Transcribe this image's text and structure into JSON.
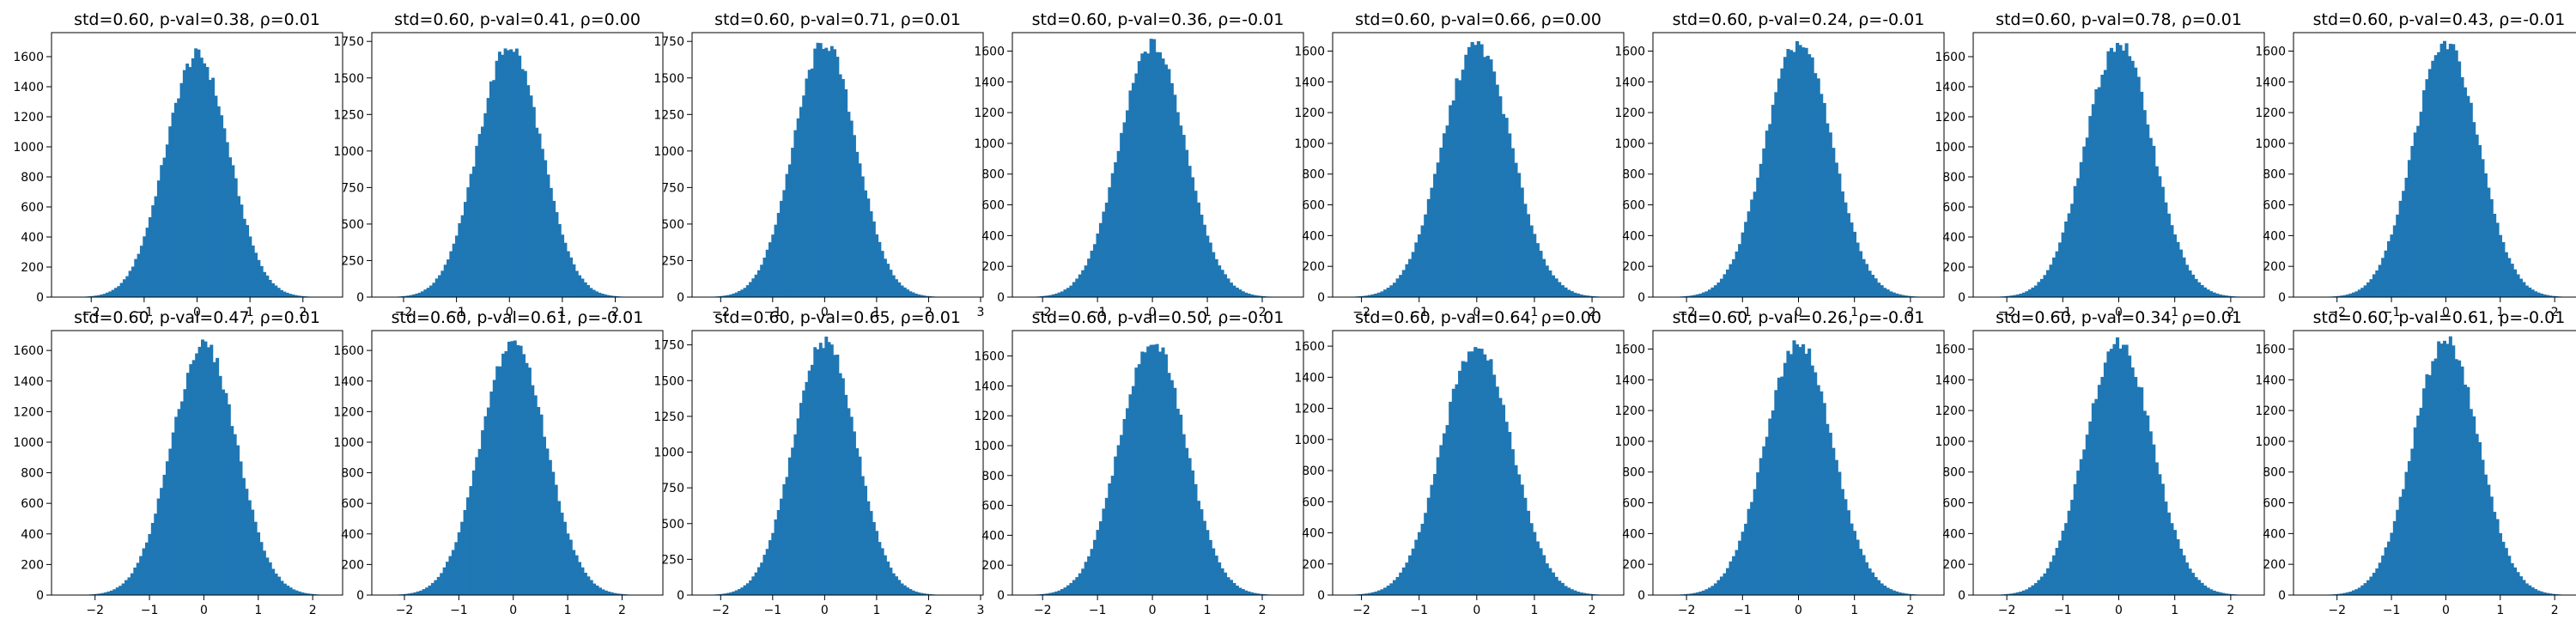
{
  "chart_data": [
    {
      "type": "bar",
      "title": "std=0.60, p-val=0.38, ρ=0.01",
      "xticks": [
        -2,
        -1,
        0,
        1,
        2
      ],
      "xlim": [
        -2.75,
        2.75
      ],
      "yticks": [
        0,
        200,
        400,
        600,
        800,
        1000,
        1200,
        1400,
        1600
      ],
      "ylim": [
        0,
        1760
      ],
      "std": 0.6,
      "peak": 1610,
      "color": "#1f77b4",
      "bins": 100,
      "grid": false
    },
    {
      "type": "bar",
      "title": "std=0.60, p-val=0.41, ρ=0.00",
      "xticks": [
        -2,
        -1,
        0,
        1,
        2
      ],
      "xlim": [
        -2.6,
        2.9
      ],
      "yticks": [
        0,
        250,
        500,
        750,
        1000,
        1250,
        1500,
        1750
      ],
      "ylim": [
        0,
        1810
      ],
      "std": 0.6,
      "peak": 1720,
      "color": "#1f77b4",
      "bins": 100,
      "grid": false
    },
    {
      "type": "bar",
      "title": "std=0.60, p-val=0.71, ρ=0.01",
      "xticks": [
        -2,
        -1,
        0,
        1,
        2,
        3
      ],
      "xlim": [
        -2.55,
        3.05
      ],
      "yticks": [
        0,
        250,
        500,
        750,
        1000,
        1250,
        1500,
        1750
      ],
      "ylim": [
        0,
        1810
      ],
      "std": 0.6,
      "peak": 1740,
      "color": "#1f77b4",
      "bins": 100,
      "grid": false
    },
    {
      "type": "bar",
      "title": "std=0.60, p-val=0.36, ρ=-0.01",
      "xticks": [
        -2,
        -1,
        0,
        1,
        2
      ],
      "xlim": [
        -2.55,
        2.75
      ],
      "yticks": [
        0,
        200,
        400,
        600,
        800,
        1000,
        1200,
        1400,
        1600
      ],
      "ylim": [
        0,
        1720
      ],
      "std": 0.6,
      "peak": 1640,
      "color": "#1f77b4",
      "bins": 100,
      "grid": false
    },
    {
      "type": "bar",
      "title": "std=0.60, p-val=0.66, ρ=0.00",
      "xticks": [
        -2,
        -1,
        0,
        1,
        2
      ],
      "xlim": [
        -2.5,
        2.55
      ],
      "yticks": [
        0,
        200,
        400,
        600,
        800,
        1000,
        1200,
        1400,
        1600
      ],
      "ylim": [
        0,
        1720
      ],
      "std": 0.6,
      "peak": 1640,
      "color": "#1f77b4",
      "bins": 100,
      "grid": false
    },
    {
      "type": "bar",
      "title": "std=0.60, p-val=0.24, ρ=-0.01",
      "xticks": [
        -2,
        -1,
        0,
        1,
        2
      ],
      "xlim": [
        -2.6,
        2.6
      ],
      "yticks": [
        0,
        200,
        400,
        600,
        800,
        1000,
        1200,
        1400,
        1600
      ],
      "ylim": [
        0,
        1720
      ],
      "std": 0.6,
      "peak": 1650,
      "color": "#1f77b4",
      "bins": 100,
      "grid": false
    },
    {
      "type": "bar",
      "title": "std=0.60, p-val=0.78, ρ=0.01",
      "xticks": [
        -2,
        -1,
        0,
        1,
        2
      ],
      "xlim": [
        -2.6,
        2.6
      ],
      "yticks": [
        0,
        200,
        400,
        600,
        800,
        1000,
        1200,
        1400,
        1600
      ],
      "ylim": [
        0,
        1760
      ],
      "std": 0.6,
      "peak": 1690,
      "color": "#1f77b4",
      "bins": 100,
      "grid": false
    },
    {
      "type": "bar",
      "title": "std=0.60, p-val=0.43, ρ=-0.01",
      "xticks": [
        -2,
        -1,
        0,
        1,
        2
      ],
      "xlim": [
        -2.8,
        2.55
      ],
      "yticks": [
        0,
        200,
        400,
        600,
        800,
        1000,
        1200,
        1400,
        1600
      ],
      "ylim": [
        0,
        1720
      ],
      "std": 0.6,
      "peak": 1650,
      "color": "#1f77b4",
      "bins": 100,
      "grid": false
    },
    {
      "type": "bar",
      "title": "std=0.60, p-val=0.47, ρ=0.01",
      "xticks": [
        -2,
        -1,
        0,
        1,
        2
      ],
      "xlim": [
        -2.8,
        2.55
      ],
      "yticks": [
        0,
        200,
        400,
        600,
        800,
        1000,
        1200,
        1400,
        1600
      ],
      "ylim": [
        0,
        1730
      ],
      "std": 0.6,
      "peak": 1640,
      "color": "#1f77b4",
      "bins": 100,
      "grid": false
    },
    {
      "type": "bar",
      "title": "std=0.60, p-val=0.61, ρ=-0.01",
      "xticks": [
        -2,
        -1,
        0,
        1,
        2
      ],
      "xlim": [
        -2.6,
        2.75
      ],
      "yticks": [
        0,
        200,
        400,
        600,
        800,
        1000,
        1200,
        1400,
        1600
      ],
      "ylim": [
        0,
        1730
      ],
      "std": 0.6,
      "peak": 1660,
      "color": "#1f77b4",
      "bins": 100,
      "grid": false
    },
    {
      "type": "bar",
      "title": "std=0.60, p-val=0.65, ρ=0.01",
      "xticks": [
        -2,
        -1,
        0,
        1,
        2,
        3
      ],
      "xlim": [
        -2.55,
        3.05
      ],
      "yticks": [
        0,
        250,
        500,
        750,
        1000,
        1250,
        1500,
        1750
      ],
      "ylim": [
        0,
        1850
      ],
      "std": 0.6,
      "peak": 1780,
      "color": "#1f77b4",
      "bins": 100,
      "grid": false
    },
    {
      "type": "bar",
      "title": "std=0.60, p-val=0.50, ρ=-0.01",
      "xticks": [
        -2,
        -1,
        0,
        1,
        2
      ],
      "xlim": [
        -2.55,
        2.75
      ],
      "yticks": [
        0,
        200,
        400,
        600,
        800,
        1000,
        1200,
        1400,
        1600
      ],
      "ylim": [
        0,
        1770
      ],
      "std": 0.6,
      "peak": 1700,
      "color": "#1f77b4",
      "bins": 100,
      "grid": false
    },
    {
      "type": "bar",
      "title": "std=0.60, p-val=0.64, ρ=0.00",
      "xticks": [
        -2,
        -1,
        0,
        1,
        2
      ],
      "xlim": [
        -2.5,
        2.55
      ],
      "yticks": [
        0,
        200,
        400,
        600,
        800,
        1000,
        1200,
        1400,
        1600
      ],
      "ylim": [
        0,
        1700
      ],
      "std": 0.6,
      "peak": 1620,
      "color": "#1f77b4",
      "bins": 100,
      "grid": false
    },
    {
      "type": "bar",
      "title": "std=0.60, p-val=0.26, ρ=-0.01",
      "xticks": [
        -2,
        -1,
        0,
        1,
        2
      ],
      "xlim": [
        -2.6,
        2.6
      ],
      "yticks": [
        0,
        200,
        400,
        600,
        800,
        1000,
        1200,
        1400,
        1600
      ],
      "ylim": [
        0,
        1720
      ],
      "std": 0.6,
      "peak": 1650,
      "color": "#1f77b4",
      "bins": 100,
      "grid": false
    },
    {
      "type": "bar",
      "title": "std=0.60, p-val=0.34, ρ=0.01",
      "xticks": [
        -2,
        -1,
        0,
        1,
        2
      ],
      "xlim": [
        -2.6,
        2.6
      ],
      "yticks": [
        0,
        200,
        400,
        600,
        800,
        1000,
        1200,
        1400,
        1600
      ],
      "ylim": [
        0,
        1720
      ],
      "std": 0.6,
      "peak": 1650,
      "color": "#1f77b4",
      "bins": 100,
      "grid": false
    },
    {
      "type": "bar",
      "title": "std=0.60, p-val=0.61, ρ=-0.01",
      "xticks": [
        -2,
        -1,
        0,
        1,
        2
      ],
      "xlim": [
        -2.8,
        2.55
      ],
      "yticks": [
        0,
        200,
        400,
        600,
        800,
        1000,
        1200,
        1400,
        1600
      ],
      "ylim": [
        0,
        1720
      ],
      "std": 0.6,
      "peak": 1660,
      "color": "#1f77b4",
      "bins": 100,
      "grid": false
    }
  ]
}
